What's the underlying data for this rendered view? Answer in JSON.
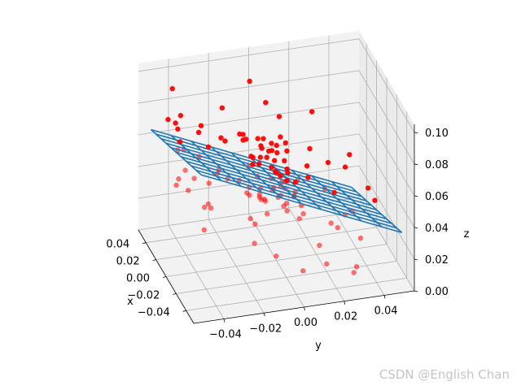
{
  "chart_data": {
    "type": "scatter",
    "subtype": "3d-scatter-with-wireframe-plane",
    "title": "",
    "xlabel": "x",
    "ylabel": "y",
    "zlabel": "z",
    "xlim": [
      -0.055,
      0.055
    ],
    "ylim": [
      -0.055,
      0.055
    ],
    "zlim": [
      0.0,
      0.105
    ],
    "x_ticks": [
      "−0.04",
      "−0.02",
      "0.00",
      "0.02",
      "0.04"
    ],
    "y_ticks": [
      "−0.04",
      "−0.02",
      "0.00",
      "0.02",
      "0.04"
    ],
    "z_ticks": [
      "0.00",
      "0.02",
      "0.04",
      "0.06",
      "0.08",
      "0.10"
    ],
    "x_tick_values": [
      -0.04,
      -0.02,
      0.0,
      0.02,
      0.04
    ],
    "y_tick_values": [
      -0.04,
      -0.02,
      0.0,
      0.02,
      0.04
    ],
    "z_tick_values": [
      0.0,
      0.02,
      0.04,
      0.06,
      0.08,
      0.1
    ],
    "grid": true,
    "series": [
      {
        "type": "scatter",
        "color": "#ff0000",
        "note": "approx. 120 red points scattered around the plane, dense cluster near (0.01, 0.0, 0.03)"
      },
      {
        "type": "wireframe",
        "color": "#1f77b4",
        "plane": {
          "z_at_origin": 0.05,
          "dz_dx": -0.25,
          "dz_dy": -0.55
        },
        "x_range": [
          -0.05,
          0.05
        ],
        "y_range": [
          -0.05,
          0.05
        ],
        "grid_lines": 10
      }
    ]
  },
  "watermark": "CSDN @English Chan"
}
